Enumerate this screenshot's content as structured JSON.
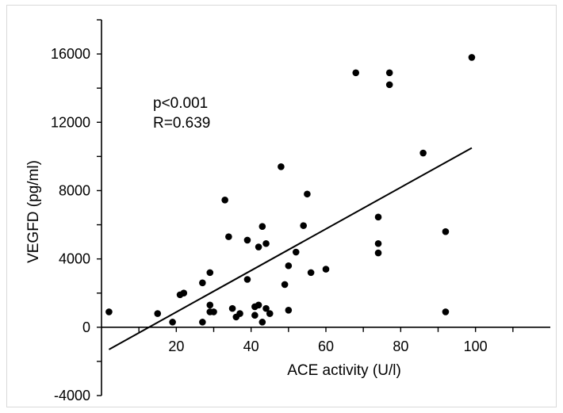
{
  "chart_data": {
    "type": "scatter",
    "title": "",
    "xlabel": "ACE activity (U/l)",
    "ylabel": "VEGFD (pg/ml)",
    "xlim": [
      0,
      120
    ],
    "ylim": [
      -4000,
      18000
    ],
    "x_ticks": [
      20,
      40,
      60,
      80,
      100
    ],
    "x_tick_labels": [
      "20",
      "40",
      "60",
      "80",
      "100"
    ],
    "y_ticks": [
      -4000,
      0,
      4000,
      8000,
      12000,
      16000
    ],
    "y_tick_labels": [
      "-4000",
      "0",
      "4000",
      "8000",
      "12000",
      "16000"
    ],
    "grid": false,
    "legend": "none",
    "annotations": [
      "p<0.001",
      "R=0.639"
    ],
    "trendline": {
      "x": [
        2,
        99
      ],
      "y": [
        -1300,
        10500
      ]
    },
    "series": [
      {
        "color": "#000000",
        "points": [
          [
            2,
            900
          ],
          [
            15,
            800
          ],
          [
            19,
            300
          ],
          [
            21,
            1900
          ],
          [
            22,
            2000
          ],
          [
            27,
            2600
          ],
          [
            27,
            300
          ],
          [
            29,
            3200
          ],
          [
            29,
            1300
          ],
          [
            29,
            900
          ],
          [
            30,
            900
          ],
          [
            33,
            7450
          ],
          [
            34,
            5300
          ],
          [
            35,
            1100
          ],
          [
            36,
            600
          ],
          [
            37,
            800
          ],
          [
            39,
            5100
          ],
          [
            39,
            2800
          ],
          [
            41,
            1200
          ],
          [
            41,
            700
          ],
          [
            42,
            4700
          ],
          [
            42,
            1300
          ],
          [
            43,
            5900
          ],
          [
            43,
            300
          ],
          [
            44,
            4900
          ],
          [
            44,
            1100
          ],
          [
            45,
            800
          ],
          [
            48,
            9400
          ],
          [
            49,
            2500
          ],
          [
            50,
            3600
          ],
          [
            50,
            1000
          ],
          [
            52,
            4400
          ],
          [
            54,
            5950
          ],
          [
            55,
            7800
          ],
          [
            56,
            3200
          ],
          [
            60,
            3400
          ],
          [
            68,
            14900
          ],
          [
            74,
            6450
          ],
          [
            74,
            4900
          ],
          [
            74,
            4350
          ],
          [
            77,
            14900
          ],
          [
            77,
            14200
          ],
          [
            86,
            10200
          ],
          [
            92,
            5600
          ],
          [
            92,
            900
          ],
          [
            99,
            15800
          ]
        ]
      }
    ]
  }
}
